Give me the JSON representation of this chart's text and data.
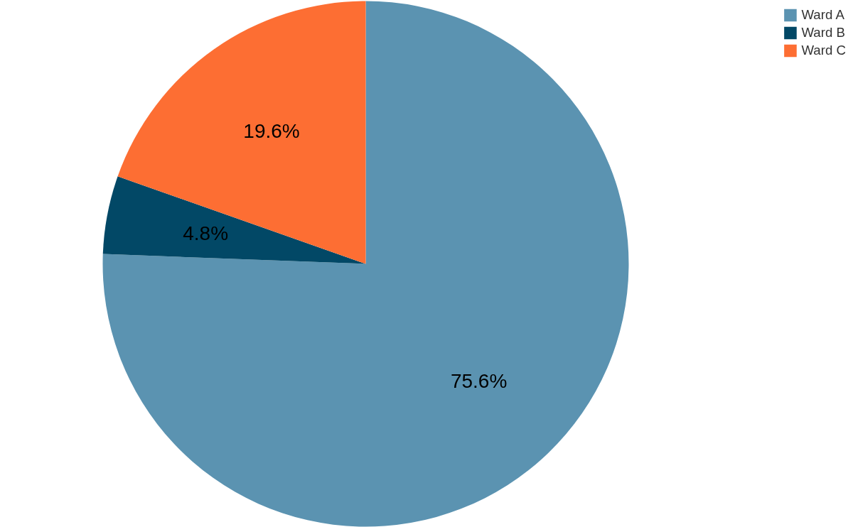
{
  "chart_data": {
    "type": "pie",
    "categories": [
      "Ward A",
      "Ward B",
      "Ward C"
    ],
    "values": [
      75.6,
      4.8,
      19.6
    ],
    "colors": [
      "#5b93b1",
      "#024866",
      "#fd6e33"
    ],
    "value_labels": [
      "75.6%",
      "4.8%",
      "19.6%"
    ],
    "legend": "top right"
  }
}
